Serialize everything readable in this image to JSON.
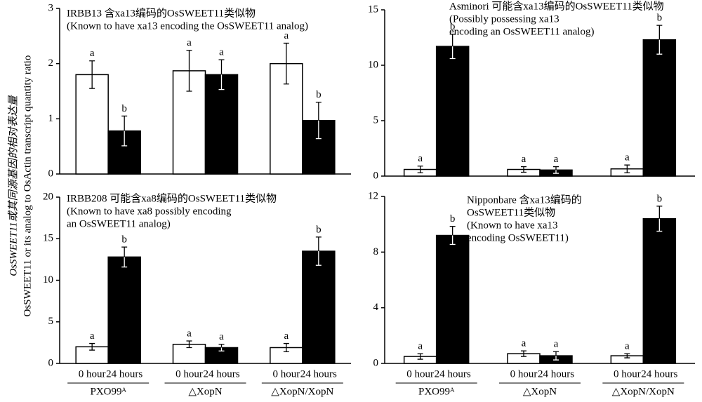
{
  "ylabel": [
    "OsSWEET11或其同源基因的相对表达量",
    "OsSWEET11 or its analog to OsActin transcript quantity ratio"
  ],
  "chart_data": [
    {
      "type": "bar",
      "title": "IRBB13 含xa13编码的OsSWEET11类似物",
      "subtitle": [
        "(Known to have xa13 encoding the OsSWEET11 analog)"
      ],
      "categories": [
        null,
        null,
        null
      ],
      "series": [
        {
          "color": "#ffffff",
          "values": [
            1.8,
            1.87,
            2.0
          ],
          "errors": [
            0.25,
            0.37,
            0.37
          ],
          "letters": [
            "a",
            "a",
            "a"
          ]
        },
        {
          "color": "#000000",
          "values": [
            0.78,
            1.8,
            0.97
          ],
          "errors": [
            0.27,
            0.27,
            0.33
          ],
          "letters": [
            "b",
            "a",
            "b"
          ]
        }
      ],
      "ylim": [
        0,
        3
      ],
      "yticks": [
        0,
        1,
        2,
        3
      ]
    },
    {
      "type": "bar",
      "title": "Asminori 可能含xa13编码的OsSWEET11类似物",
      "subtitle": [
        "(Possibly possessing xa13",
        "encoding an OsSWEET11 analog)"
      ],
      "categories": [
        null,
        null,
        null
      ],
      "series": [
        {
          "color": "#ffffff",
          "values": [
            0.6,
            0.6,
            0.65
          ],
          "errors": [
            0.3,
            0.25,
            0.35
          ],
          "letters": [
            "a",
            "a",
            "a"
          ]
        },
        {
          "color": "#000000",
          "values": [
            11.7,
            0.55,
            12.3
          ],
          "errors": [
            1.1,
            0.3,
            1.3
          ],
          "letters": [
            "b",
            "a",
            "b"
          ]
        }
      ],
      "ylim": [
        0,
        15
      ],
      "yticks": [
        0,
        5,
        10,
        15
      ]
    },
    {
      "type": "bar",
      "title": "IRBB208 可能含xa8编码的OsSWEET11类似物",
      "subtitle": [
        "(Known to have xa8 possibly encoding",
        "an OsSWEET11 analog)"
      ],
      "categories": [
        "PXO99ᴬ",
        "△XopN",
        "△XopN/XopN"
      ],
      "series": [
        {
          "name": "0 hour",
          "color": "#ffffff",
          "values": [
            2.0,
            2.3,
            1.9
          ],
          "errors": [
            0.4,
            0.4,
            0.5
          ],
          "letters": [
            "a",
            "a",
            "a"
          ]
        },
        {
          "name": "24 hours",
          "color": "#000000",
          "values": [
            12.8,
            1.9,
            13.5
          ],
          "errors": [
            1.2,
            0.4,
            1.7
          ],
          "letters": [
            "b",
            "a",
            "b"
          ]
        }
      ],
      "ylim": [
        0,
        20
      ],
      "yticks": [
        0,
        5,
        10,
        15,
        20
      ]
    },
    {
      "type": "bar",
      "title": "Nipponbare 含xa13编码的",
      "subtitle": [
        "OsSWEET11类似物",
        "(Known to have xa13",
        "encoding OsSWEET11)"
      ],
      "categories": [
        "PXO99ᴬ",
        "△XopN",
        "△XopN/XopN"
      ],
      "series": [
        {
          "name": "0 hour",
          "color": "#ffffff",
          "values": [
            0.5,
            0.7,
            0.55
          ],
          "errors": [
            0.2,
            0.2,
            0.15
          ],
          "letters": [
            "a",
            "a",
            "a"
          ]
        },
        {
          "name": "24 hours",
          "color": "#000000",
          "values": [
            9.2,
            0.55,
            10.4
          ],
          "errors": [
            0.65,
            0.3,
            0.9
          ],
          "letters": [
            "b",
            "a",
            "b"
          ]
        }
      ],
      "ylim": [
        0,
        12
      ],
      "yticks": [
        0,
        4,
        8,
        12
      ]
    }
  ]
}
